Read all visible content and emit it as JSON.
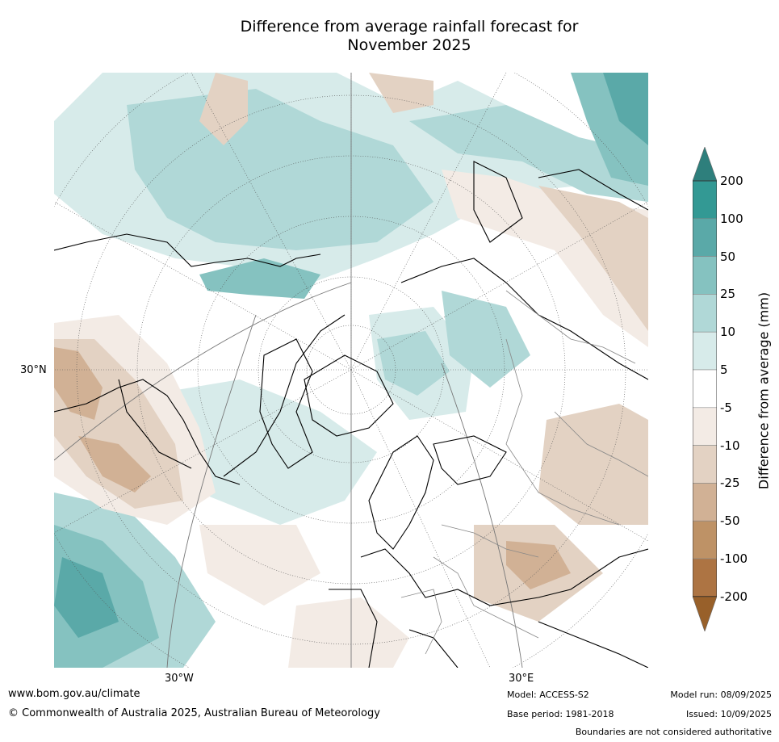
{
  "title_line1": "Difference from average rainfall forecast for",
  "title_line2": "November 2025",
  "axis_labels": {
    "lat": "30°N",
    "lon_west": "30°W",
    "lon_east": "30°E"
  },
  "colorbar": {
    "title": "Difference from average (mm)",
    "ticks": [
      "200",
      "100",
      "50",
      "25",
      "10",
      "5",
      "-5",
      "-10",
      "-25",
      "-50",
      "-100",
      "-200"
    ],
    "colors": [
      "#2e7f7c",
      "#339994",
      "#5aa9a8",
      "#85c2c0",
      "#b0d8d7",
      "#d7ebea",
      "#ffffff",
      "#f3ebe5",
      "#e3d2c3",
      "#d1b195",
      "#be9266",
      "#ad7443",
      "#98602a"
    ]
  },
  "footer": {
    "url": "www.bom.gov.au/climate",
    "copyright": "© Commonwealth of Australia 2025, Australian Bureau of Meteorology",
    "model": "Model: ACCESS-S2",
    "base_period": "Base period: 1981-2018",
    "model_run": "Model run: 08/09/2025",
    "issued": "Issued: 10/09/2025",
    "disclaimer": "Boundaries are not considered authoritative"
  }
}
